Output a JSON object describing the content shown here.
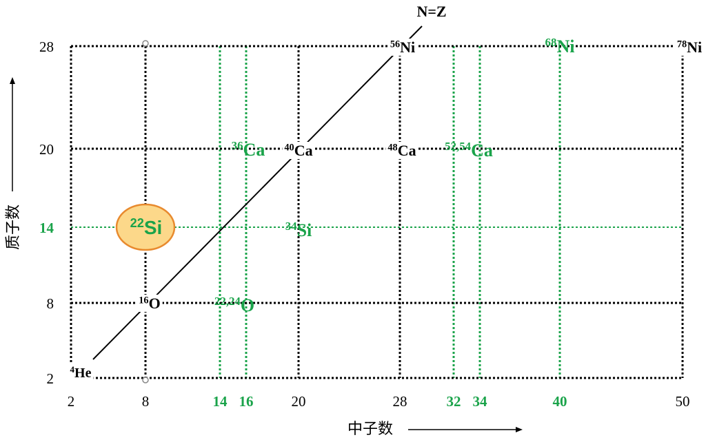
{
  "x_axis": {
    "title": "中子数",
    "ticks": [
      {
        "label": "2",
        "color": "#000000"
      },
      {
        "label": "8",
        "color": "#000000"
      },
      {
        "label": "14",
        "color": "#1aa34a"
      },
      {
        "label": "16",
        "color": "#1aa34a"
      },
      {
        "label": "20",
        "color": "#000000"
      },
      {
        "label": "28",
        "color": "#000000"
      },
      {
        "label": "32",
        "color": "#1aa34a"
      },
      {
        "label": "34",
        "color": "#1aa34a"
      },
      {
        "label": "40",
        "color": "#1aa34a"
      },
      {
        "label": "50",
        "color": "#000000"
      }
    ]
  },
  "y_axis": {
    "title": "质子数",
    "ticks": [
      {
        "label": "2",
        "color": "#000000"
      },
      {
        "label": "8",
        "color": "#000000"
      },
      {
        "label": "14",
        "color": "#1aa34a"
      },
      {
        "label": "20",
        "color": "#000000"
      },
      {
        "label": "28",
        "color": "#000000"
      }
    ]
  },
  "diagonal_label": "N=Z",
  "nuclei": [
    {
      "mass": "4",
      "symbol": "He",
      "color": "#000000"
    },
    {
      "mass": "16",
      "symbol": "O",
      "color": "#000000"
    },
    {
      "mass": "22,24",
      "symbol": "O",
      "color": "#1aa34a"
    },
    {
      "mass": "22",
      "symbol": "Si",
      "color": "#1aa34a"
    },
    {
      "mass": "34",
      "symbol": "Si",
      "color": "#1aa34a"
    },
    {
      "mass": "36",
      "symbol": "Ca",
      "color": "#1aa34a"
    },
    {
      "mass": "40",
      "symbol": "Ca",
      "color": "#000000"
    },
    {
      "mass": "48",
      "symbol": "Ca",
      "color": "#000000"
    },
    {
      "mass": "52,54",
      "symbol": "Ca",
      "color": "#1aa34a"
    },
    {
      "mass": "56",
      "symbol": "Ni",
      "color": "#000000"
    },
    {
      "mass": "68",
      "symbol": "Ni",
      "color": "#1aa34a"
    },
    {
      "mass": "78",
      "symbol": "Ni",
      "color": "#000000"
    }
  ]
}
